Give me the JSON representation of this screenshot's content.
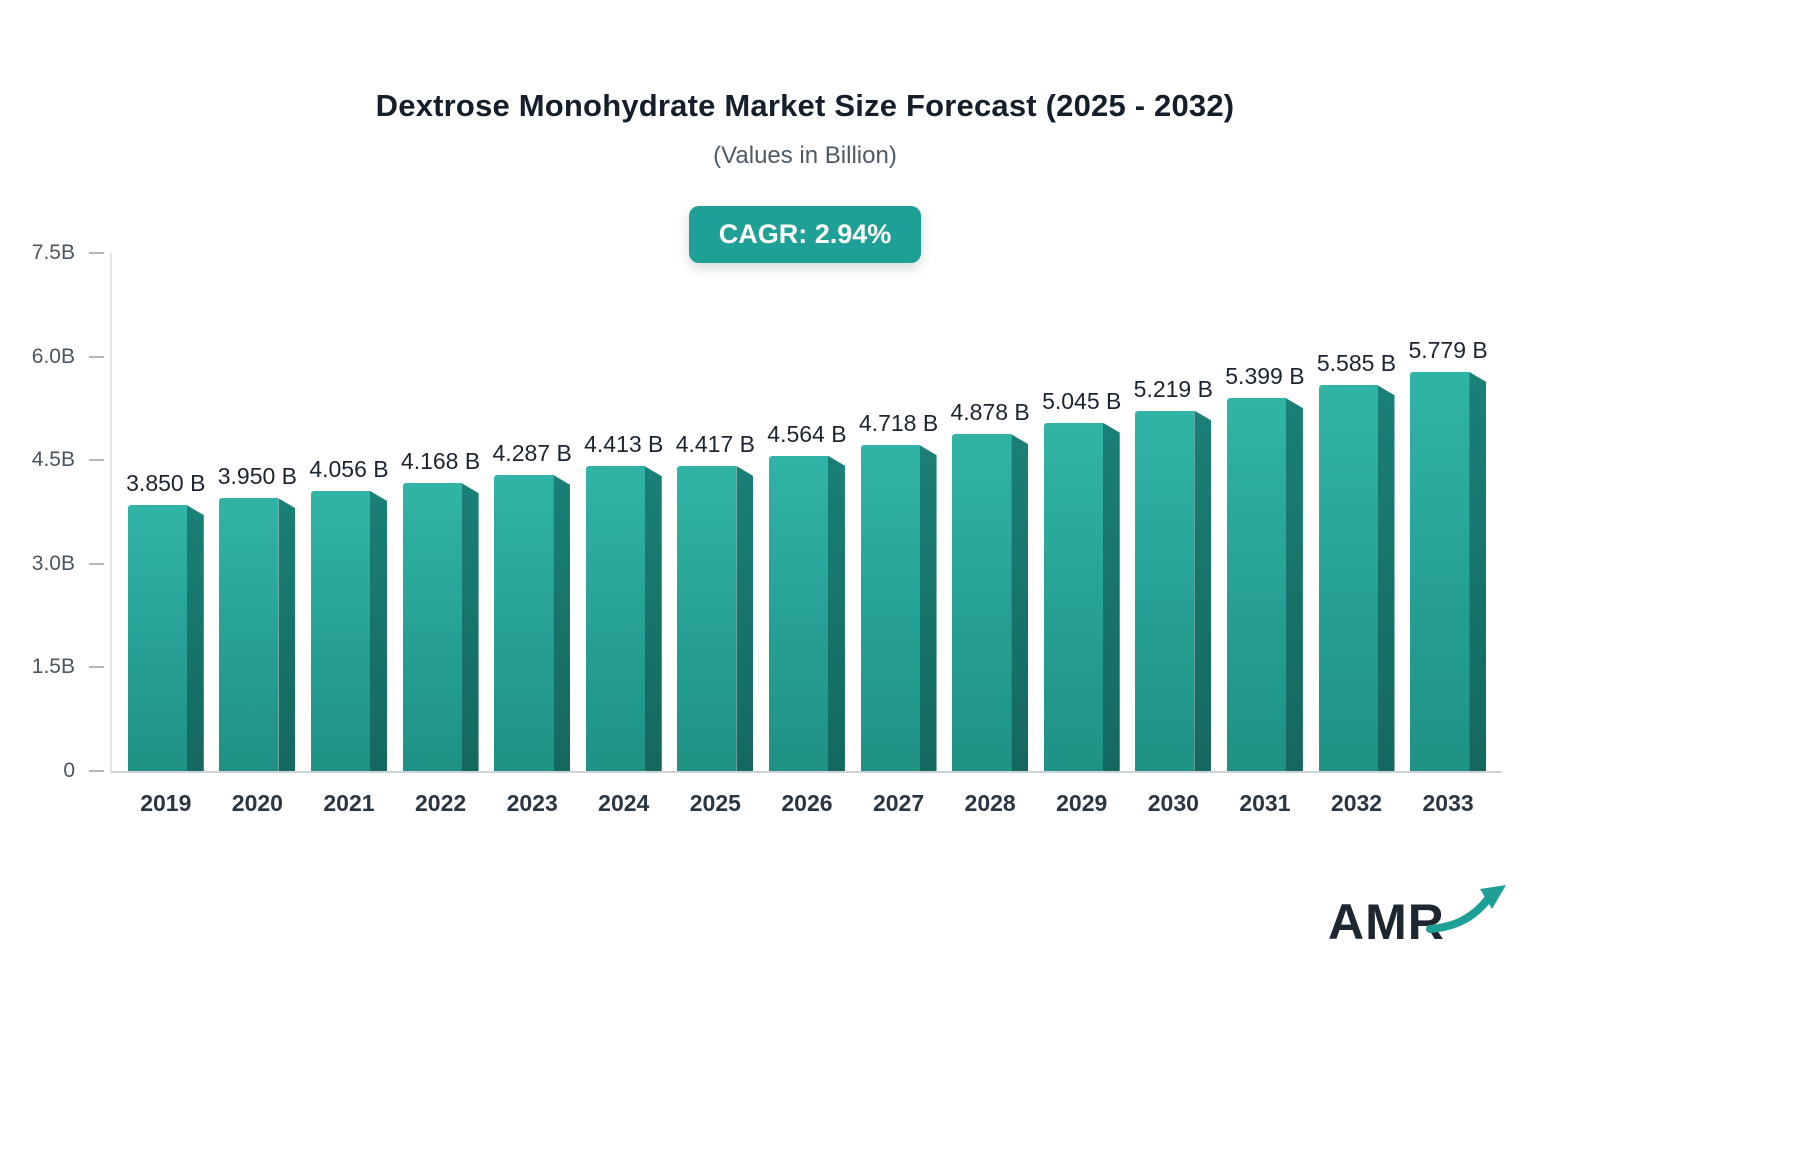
{
  "header": {
    "title": "Dextrose Monohydrate Market Size Forecast (2025 - 2032)",
    "subtitle": "(Values in Billion)",
    "badge_label": "CAGR: 2.94%",
    "badge_color": "#1fa096"
  },
  "logo": {
    "text": "AMR",
    "arrow_icon": "trend-up-arrow",
    "arrow_color": "#1fa096"
  },
  "chart_data": {
    "type": "bar",
    "title": "Dextrose Monohydrate Market Size Forecast (2025 - 2032)",
    "subtitle": "(Values in Billion)",
    "annotation": "CAGR: 2.94%",
    "categories": [
      "2019",
      "2020",
      "2021",
      "2022",
      "2023",
      "2024",
      "2025",
      "2026",
      "2027",
      "2028",
      "2029",
      "2030",
      "2031",
      "2032",
      "2033"
    ],
    "values": [
      3.85,
      3.95,
      4.056,
      4.168,
      4.287,
      4.413,
      4.417,
      4.564,
      4.718,
      4.878,
      5.045,
      5.219,
      5.399,
      5.585,
      5.779
    ],
    "value_labels": [
      "3.850 B",
      "3.950 B",
      "4.056 B",
      "4.168 B",
      "4.287 B",
      "4.413 B",
      "4.417 B",
      "4.564 B",
      "4.718 B",
      "4.878 B",
      "5.045 B",
      "5.219 B",
      "5.399 B",
      "5.585 B",
      "5.779 B"
    ],
    "xlabel": "",
    "ylabel": "",
    "ylim": [
      0,
      7.5
    ],
    "yticks": [
      {
        "v": 0,
        "label": "0"
      },
      {
        "v": 1.5,
        "label": "1.5B"
      },
      {
        "v": 3.0,
        "label": "3.0B"
      },
      {
        "v": 4.5,
        "label": "4.5B"
      },
      {
        "v": 6.0,
        "label": "6.0B"
      },
      {
        "v": 7.5,
        "label": "7.5B"
      }
    ],
    "grid": false,
    "legend": "none",
    "bar_color": "#26a094",
    "bar_side_color": "#17756c"
  }
}
